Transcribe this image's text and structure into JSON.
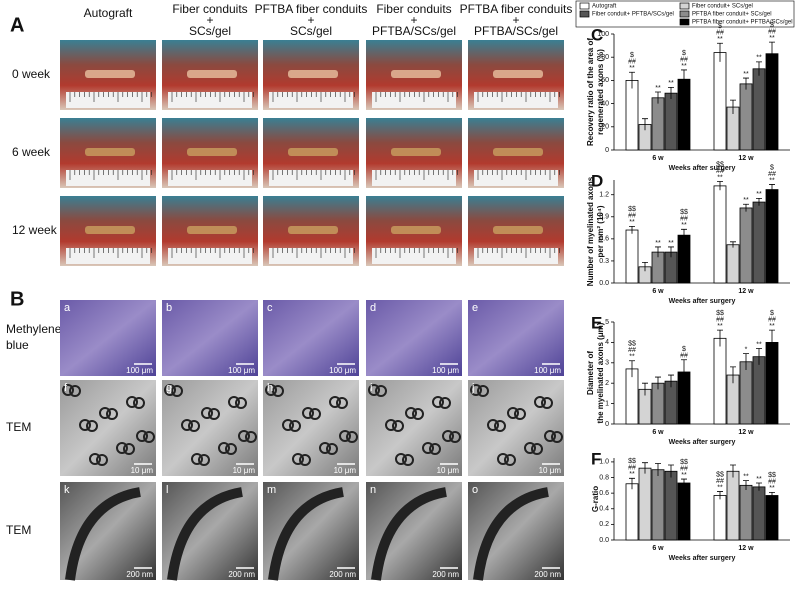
{
  "panel_a": {
    "label": "A",
    "columns": [
      [
        "Autograft"
      ],
      [
        "Fiber conduits",
        "+",
        "SCs/gel"
      ],
      [
        "PFTBA fiber conduits",
        "+",
        "SCs/gel"
      ],
      [
        "Fiber conduits",
        "+",
        "PFTBA/SCs/gel"
      ],
      [
        "PFTBA fiber conduits",
        "+",
        "PFTBA/SCs/gel"
      ]
    ],
    "rows": [
      "0 week",
      "6 week",
      "12 week"
    ]
  },
  "panel_b": {
    "label": "B",
    "rows": [
      [
        "Methylene",
        "blue"
      ],
      [
        "TEM"
      ],
      [
        "TEM"
      ]
    ],
    "subpanels": [
      "a",
      "b",
      "c",
      "d",
      "e",
      "f",
      "g",
      "h",
      "i",
      "j",
      "k",
      "l",
      "m",
      "n",
      "o"
    ],
    "scale_bars": [
      "100 μm",
      "10 μm",
      "200 nm"
    ]
  },
  "chart_data": [
    {
      "type": "bar",
      "label": "C",
      "ylabel": [
        "Recovery ratio of the area of",
        "regenerated axons (%)"
      ],
      "xlabel": "Weeks after surgery",
      "categories": [
        "6 w",
        "12 w"
      ],
      "ylim": [
        0,
        100
      ],
      "yticks": [
        0,
        20,
        40,
        60,
        80,
        100
      ],
      "series": [
        {
          "name": "Autograft",
          "color": "#ffffff",
          "values": [
            60,
            84
          ],
          "errors": [
            7,
            8
          ],
          "annotations": [
            [
              "$",
              "##",
              "**"
            ],
            [
              "$",
              "##",
              "**"
            ]
          ]
        },
        {
          "name": "Fiber conduit+ SCs/gel",
          "color": "#d4d4d4",
          "values": [
            22,
            37
          ],
          "errors": [
            5,
            6
          ],
          "annotations": [
            [],
            []
          ]
        },
        {
          "name": "PFTBA fiber conduit+ SCs/gel",
          "color": "#8c8c8c",
          "values": [
            45,
            57
          ],
          "errors": [
            5,
            5
          ],
          "annotations": [
            [
              "**"
            ],
            [
              "**"
            ]
          ]
        },
        {
          "name": "Fiber conduit+ PFTBA/SCs/gel",
          "color": "#555555",
          "values": [
            49,
            70
          ],
          "errors": [
            5,
            6
          ],
          "annotations": [
            [
              "**"
            ],
            [
              "**"
            ]
          ]
        },
        {
          "name": "PFTBA fiber conduit+ PFTBA/SCs/gel",
          "color": "#000000",
          "values": [
            61,
            83
          ],
          "errors": [
            8,
            10
          ],
          "annotations": [
            [
              "$",
              "##",
              "**"
            ],
            [
              "$",
              "##",
              "**"
            ]
          ]
        }
      ]
    },
    {
      "type": "bar",
      "label": "D",
      "ylabel": [
        "Number of myelinated axons",
        "per mm² (10⁴)"
      ],
      "xlabel": "Weeks after surgery",
      "categories": [
        "6 w",
        "12 w"
      ],
      "ylim": [
        0,
        1.4
      ],
      "yticks": [
        {
          "value": 0,
          "label": "0.0"
        },
        0.3,
        0.6,
        0.9,
        1.2
      ],
      "series": [
        {
          "color": "#ffffff",
          "values": [
            0.72,
            1.32
          ],
          "errors": [
            0.05,
            0.06
          ],
          "annotations": [
            [
              "$$",
              "##",
              "**"
            ],
            [
              "$$",
              "##",
              "**"
            ]
          ]
        },
        {
          "color": "#d4d4d4",
          "values": [
            0.22,
            0.52
          ],
          "errors": [
            0.06,
            0.04
          ],
          "annotations": [
            [],
            []
          ]
        },
        {
          "color": "#8c8c8c",
          "values": [
            0.42,
            1.02
          ],
          "errors": [
            0.07,
            0.05
          ],
          "annotations": [
            [
              "**"
            ],
            [
              "**"
            ]
          ]
        },
        {
          "color": "#555555",
          "values": [
            0.42,
            1.1
          ],
          "errors": [
            0.07,
            0.05
          ],
          "annotations": [
            [
              "**"
            ],
            [
              "**"
            ]
          ]
        },
        {
          "color": "#000000",
          "values": [
            0.65,
            1.27
          ],
          "errors": [
            0.08,
            0.07
          ],
          "annotations": [
            [
              "$$",
              "##",
              "**"
            ],
            [
              "$",
              "##",
              "**"
            ]
          ]
        }
      ]
    },
    {
      "type": "bar",
      "label": "E",
      "ylabel": [
        "Diameter of",
        "the myelinated axons (μm)"
      ],
      "xlabel": "Weeks after surgery",
      "categories": [
        "6 w",
        "12 w"
      ],
      "ylim": [
        0,
        5
      ],
      "yticks": [
        0,
        1,
        2,
        3,
        4,
        5
      ],
      "series": [
        {
          "color": "#ffffff",
          "values": [
            2.7,
            4.2
          ],
          "errors": [
            0.4,
            0.4
          ],
          "annotations": [
            [
              "$$",
              "##",
              "**"
            ],
            [
              "$$",
              "##",
              "**"
            ]
          ]
        },
        {
          "color": "#d4d4d4",
          "values": [
            1.7,
            2.4
          ],
          "errors": [
            0.3,
            0.4
          ],
          "annotations": [
            [],
            []
          ]
        },
        {
          "color": "#8c8c8c",
          "values": [
            2.0,
            3.05
          ],
          "errors": [
            0.3,
            0.4
          ],
          "annotations": [
            [],
            [
              "*"
            ]
          ]
        },
        {
          "color": "#555555",
          "values": [
            2.1,
            3.3
          ],
          "errors": [
            0.3,
            0.4
          ],
          "annotations": [
            [],
            [
              "**"
            ]
          ]
        },
        {
          "color": "#000000",
          "values": [
            2.55,
            4.0
          ],
          "errors": [
            0.6,
            0.6
          ],
          "annotations": [
            [
              "$",
              "##"
            ],
            [
              "$",
              "##",
              "**"
            ]
          ]
        }
      ]
    },
    {
      "type": "bar",
      "label": "F",
      "ylabel": [
        "G-ratio"
      ],
      "xlabel": "Weeks after surgery",
      "categories": [
        "6 w",
        "12 w"
      ],
      "ylim": [
        0,
        1.05
      ],
      "yticks": [
        {
          "value": 0,
          "label": "0.0"
        },
        0.2,
        0.4,
        0.6,
        0.8,
        {
          "value": 1,
          "label": "1.0"
        }
      ],
      "series": [
        {
          "color": "#ffffff",
          "values": [
            0.72,
            0.57
          ],
          "errors": [
            0.07,
            0.05
          ],
          "annotations": [
            [
              "$$",
              "##",
              "**"
            ],
            [
              "$$",
              "##",
              "**"
            ]
          ]
        },
        {
          "color": "#d4d4d4",
          "values": [
            0.92,
            0.88
          ],
          "errors": [
            0.07,
            0.08
          ],
          "annotations": [
            [],
            []
          ]
        },
        {
          "color": "#8c8c8c",
          "values": [
            0.9,
            0.7
          ],
          "errors": [
            0.08,
            0.06
          ],
          "annotations": [
            [],
            [
              "**"
            ]
          ]
        },
        {
          "color": "#555555",
          "values": [
            0.88,
            0.68
          ],
          "errors": [
            0.08,
            0.05
          ],
          "annotations": [
            [],
            [
              "**"
            ]
          ]
        },
        {
          "color": "#000000",
          "values": [
            0.73,
            0.57
          ],
          "errors": [
            0.05,
            0.04
          ],
          "annotations": [
            [
              "$$",
              "##",
              "**"
            ],
            [
              "$$",
              "##",
              "**"
            ]
          ]
        }
      ]
    }
  ]
}
